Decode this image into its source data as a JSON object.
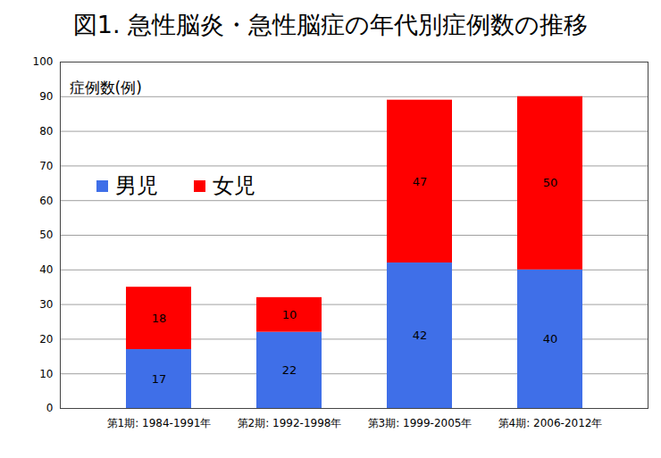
{
  "chart_data": {
    "type": "bar",
    "title": "図1. 急性脳炎・急性脳症の年代別症例数の推移",
    "y_label": "症例数(例)",
    "categories": [
      "第1期: 1984-1991年",
      "第2期: 1992-1998年",
      "第3期: 1999-2005年",
      "第4期: 2006-2012年"
    ],
    "series": [
      {
        "name": "男児",
        "color": "#3f6fe8",
        "values": [
          17,
          22,
          42,
          40
        ]
      },
      {
        "name": "女児",
        "color": "#ff0000",
        "values": [
          18,
          10,
          47,
          50
        ]
      }
    ],
    "stacked": true,
    "data_labels": true,
    "ylim": [
      0,
      100
    ],
    "yticks": [
      0,
      10,
      20,
      30,
      40,
      50,
      60,
      70,
      80,
      90,
      100
    ],
    "grid": true,
    "legend": "upper left"
  }
}
